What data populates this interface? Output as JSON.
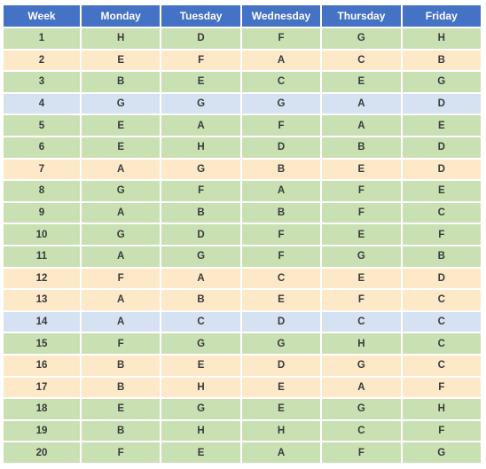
{
  "headers": [
    "Week",
    "Monday",
    "Tuesday",
    "Wednesday",
    "Thursday",
    "Friday"
  ],
  "colors": {
    "header": "#4472c4",
    "green": "#c9e0b3",
    "yellow": "#fde8c8",
    "blue": "#d6e1f2"
  },
  "rows": [
    {
      "week": "1",
      "color": "green",
      "days": [
        "H",
        "D",
        "F",
        "G",
        "H"
      ]
    },
    {
      "week": "2",
      "color": "yellow",
      "days": [
        "E",
        "F",
        "A",
        "C",
        "B"
      ]
    },
    {
      "week": "3",
      "color": "green",
      "days": [
        "B",
        "E",
        "C",
        "E",
        "G"
      ]
    },
    {
      "week": "4",
      "color": "blue",
      "days": [
        "G",
        "G",
        "G",
        "A",
        "D"
      ]
    },
    {
      "week": "5",
      "color": "green",
      "days": [
        "E",
        "A",
        "F",
        "A",
        "E"
      ]
    },
    {
      "week": "6",
      "color": "green",
      "days": [
        "E",
        "H",
        "D",
        "B",
        "D"
      ]
    },
    {
      "week": "7",
      "color": "yellow",
      "days": [
        "A",
        "G",
        "B",
        "E",
        "D"
      ]
    },
    {
      "week": "8",
      "color": "green",
      "days": [
        "G",
        "F",
        "A",
        "F",
        "E"
      ]
    },
    {
      "week": "9",
      "color": "green",
      "days": [
        "A",
        "B",
        "B",
        "F",
        "C"
      ]
    },
    {
      "week": "10",
      "color": "green",
      "days": [
        "G",
        "D",
        "F",
        "E",
        "F"
      ]
    },
    {
      "week": "11",
      "color": "green",
      "days": [
        "A",
        "G",
        "F",
        "G",
        "B"
      ]
    },
    {
      "week": "12",
      "color": "yellow",
      "days": [
        "F",
        "A",
        "C",
        "E",
        "D"
      ]
    },
    {
      "week": "13",
      "color": "yellow",
      "days": [
        "A",
        "B",
        "E",
        "F",
        "C"
      ]
    },
    {
      "week": "14",
      "color": "blue",
      "days": [
        "A",
        "C",
        "D",
        "C",
        "C"
      ]
    },
    {
      "week": "15",
      "color": "green",
      "days": [
        "F",
        "G",
        "G",
        "H",
        "C"
      ]
    },
    {
      "week": "16",
      "color": "yellow",
      "days": [
        "B",
        "E",
        "D",
        "G",
        "C"
      ]
    },
    {
      "week": "17",
      "color": "yellow",
      "days": [
        "B",
        "H",
        "E",
        "A",
        "F"
      ]
    },
    {
      "week": "18",
      "color": "green",
      "days": [
        "E",
        "G",
        "E",
        "G",
        "H"
      ]
    },
    {
      "week": "19",
      "color": "green",
      "days": [
        "B",
        "H",
        "H",
        "C",
        "F"
      ]
    },
    {
      "week": "20",
      "color": "green",
      "days": [
        "F",
        "E",
        "A",
        "F",
        "G"
      ]
    }
  ]
}
